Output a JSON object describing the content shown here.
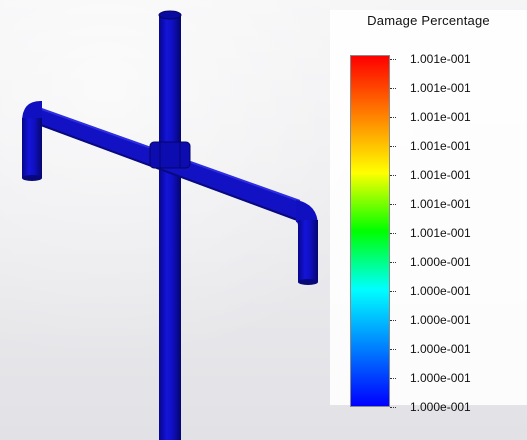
{
  "legend": {
    "title": "Damage Percentage",
    "ticks": [
      "1.001e-001",
      "1.001e-001",
      "1.001e-001",
      "1.001e-001",
      "1.001e-001",
      "1.001e-001",
      "1.001e-001",
      "1.000e-001",
      "1.000e-001",
      "1.000e-001",
      "1.000e-001",
      "1.000e-001",
      "1.000e-001"
    ],
    "colormap": [
      "#ff0000",
      "#ff7f00",
      "#ffff00",
      "#00ff00",
      "#00ffff",
      "#0080ff",
      "#0000ff"
    ]
  },
  "model": {
    "color": "#1010c8"
  }
}
